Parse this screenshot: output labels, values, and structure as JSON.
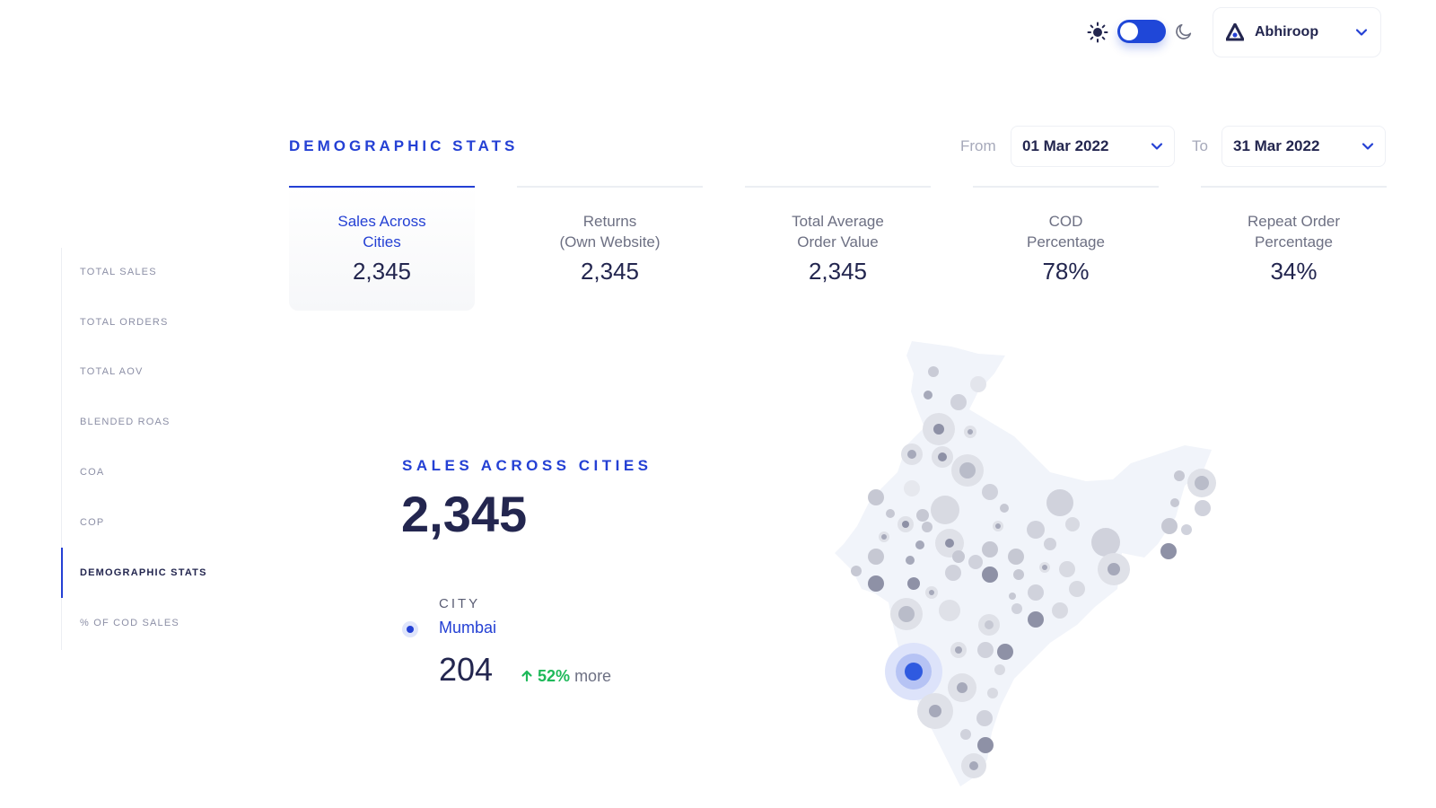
{
  "header": {
    "user_name": "Abhiroop",
    "theme": "light"
  },
  "page": {
    "title": "DEMOGRAPHIC STATS",
    "from_label": "From",
    "from_date": "01 Mar 2022",
    "to_label": "To",
    "to_date": "31 Mar 2022"
  },
  "sidebar": {
    "items": [
      {
        "label": "TOTAL SALES"
      },
      {
        "label": "TOTAL ORDERS"
      },
      {
        "label": "TOTAL AOV"
      },
      {
        "label": "BLENDED ROAS"
      },
      {
        "label": "COA"
      },
      {
        "label": "COP"
      },
      {
        "label": "DEMOGRAPHIC STATS"
      },
      {
        "label": "% OF COD SALES"
      }
    ],
    "active": "DEMOGRAPHIC STATS"
  },
  "tabs": [
    {
      "line1": "Sales Across",
      "line2": "Cities",
      "value": "2,345"
    },
    {
      "line1": "Returns",
      "line2": "(Own Website)",
      "value": "2,345"
    },
    {
      "line1": "Total Average",
      "line2": "Order Value",
      "value": "2,345"
    },
    {
      "line1": "COD",
      "line2": "Percentage",
      "value": "78%"
    },
    {
      "line1": "Repeat Order",
      "line2": "Percentage",
      "value": "34%"
    }
  ],
  "summary": {
    "title": "SALES ACROSS CITIES",
    "total": "2,345",
    "city_header": "CITY",
    "city_name": "Mumbai",
    "city_value": "204",
    "change_pct": "52%",
    "change_text": "more"
  },
  "colors": {
    "accent": "#2440d4",
    "text_dark": "#23264f",
    "positive": "#1fb95a",
    "map_fill": "#f1f4fa",
    "bubble": "#9a9db3"
  },
  "icons": [
    "sun-icon",
    "moon-icon",
    "chevron-down-icon",
    "brand-logo-icon",
    "arrow-up-icon"
  ]
}
